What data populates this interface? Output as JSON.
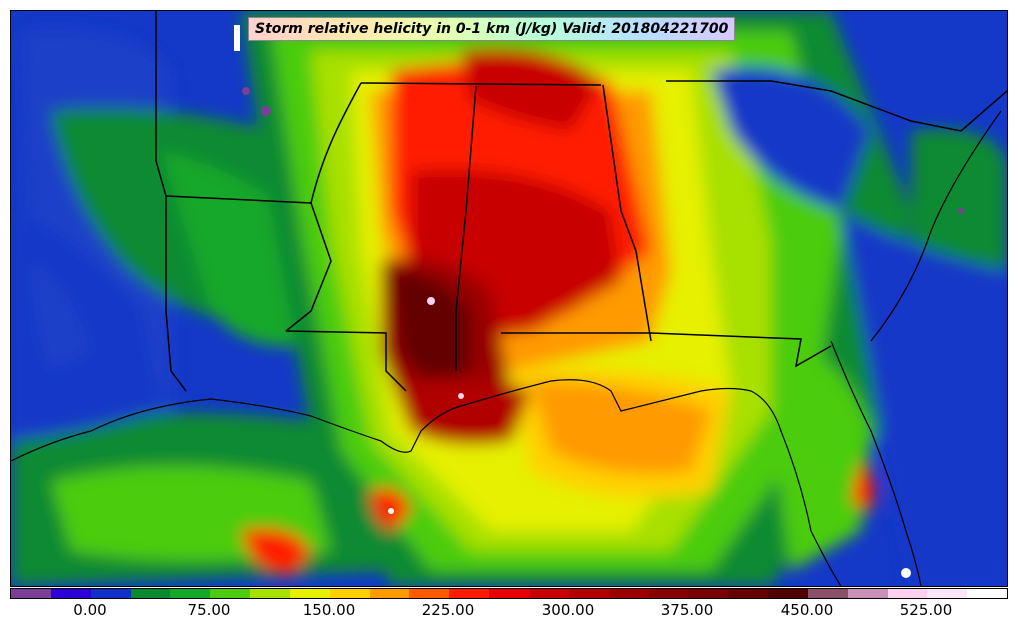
{
  "title": "Storm relative helicity in 0-1 km (J/kg) Valid: 201804221700",
  "colorbar": {
    "colors": [
      "#7b3f9a",
      "#2a00d6",
      "#1030c8",
      "#0a8a30",
      "#14a82a",
      "#4ccc10",
      "#a8e000",
      "#e6f000",
      "#ffd000",
      "#ff9a00",
      "#ff5a00",
      "#ff1a00",
      "#e60000",
      "#c80000",
      "#b00000",
      "#9a0000",
      "#880000",
      "#780000",
      "#640000",
      "#500000",
      "#8a5068",
      "#c890b8",
      "#ffd0f0",
      "#ffe6f8",
      "#ffffff"
    ],
    "ticks": [
      "0.00",
      "75.00",
      "150.00",
      "225.00",
      "300.00",
      "375.00",
      "450.00",
      "525.00"
    ]
  }
}
